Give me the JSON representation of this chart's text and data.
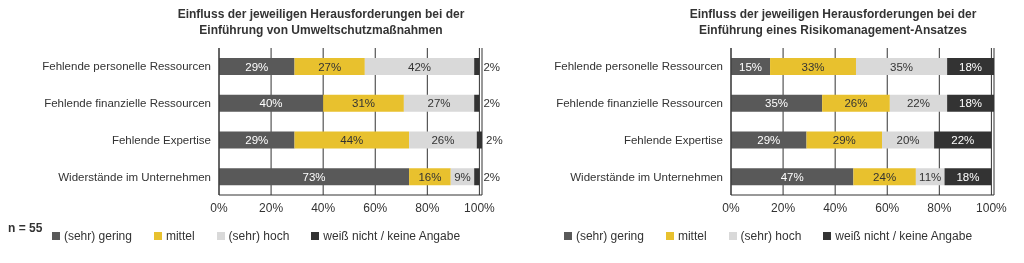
{
  "chart_data": [
    {
      "type": "bar",
      "orientation": "horizontal",
      "stacked": true,
      "title": "Einfluss der jeweiligen Herausforderungen bei der Einführung von Umweltschutzmaßnahmen",
      "categories": [
        "Fehlende personelle Ressourcen",
        "Fehlende finanzielle Ressourcen",
        "Fehlende Expertise",
        "Widerstände im Unternehmen"
      ],
      "series": [
        {
          "name": "(sehr) gering",
          "color": "#595959",
          "values": [
            29,
            40,
            29,
            73
          ],
          "value_labels": [
            "29%",
            "40%",
            "29%",
            "73%"
          ]
        },
        {
          "name": "mittel",
          "color": "#e8c12e",
          "values": [
            27,
            31,
            44,
            16
          ],
          "value_labels": [
            "27%",
            "31%",
            "44%",
            "16%"
          ]
        },
        {
          "name": "(sehr) hoch",
          "color": "#d9d9d9",
          "values": [
            42,
            27,
            26,
            9
          ],
          "value_labels": [
            "42%",
            "27%",
            "26%",
            "9%"
          ]
        },
        {
          "name": "weiß nicht / keine Angabe",
          "color": "#333333",
          "values": [
            2,
            2,
            2,
            2
          ],
          "value_labels": [
            "2%",
            "2%",
            "2%",
            "2%"
          ]
        }
      ],
      "xticks": [
        {
          "value": 0,
          "label": "0%"
        },
        {
          "value": 20,
          "label": "20%"
        },
        {
          "value": 40,
          "label": "40%"
        },
        {
          "value": 60,
          "label": "60%"
        },
        {
          "value": 80,
          "label": "80%"
        },
        {
          "value": 100,
          "label": "100%"
        }
      ],
      "grid": "x",
      "legend": "bottom",
      "annotations": [
        "n = 55"
      ],
      "xlim": [
        0,
        101
      ]
    },
    {
      "type": "bar",
      "orientation": "horizontal",
      "stacked": true,
      "title": "Einfluss der jeweiligen Herausforderungen bei der Einführung eines Risikomanagement-Ansatzes",
      "categories": [
        "Fehlende personelle Ressourcen",
        "Fehlende finanzielle Ressourcen",
        "Fehlende Expertise",
        "Widerstände im Unternehmen"
      ],
      "series": [
        {
          "name": "(sehr) gering",
          "color": "#595959",
          "values": [
            15,
            35,
            29,
            47
          ],
          "value_labels": [
            "15%",
            "35%",
            "29%",
            "47%"
          ]
        },
        {
          "name": "mittel",
          "color": "#e8c12e",
          "values": [
            33,
            26,
            29,
            24
          ],
          "value_labels": [
            "33%",
            "26%",
            "29%",
            "24%"
          ]
        },
        {
          "name": "(sehr) hoch",
          "color": "#d9d9d9",
          "values": [
            35,
            22,
            20,
            11
          ],
          "value_labels": [
            "35%",
            "22%",
            "20%",
            "11%"
          ]
        },
        {
          "name": "weiß nicht / keine Angabe",
          "color": "#333333",
          "values": [
            18,
            18,
            22,
            18
          ],
          "value_labels": [
            "18%",
            "18%",
            "22%",
            "18%"
          ]
        }
      ],
      "xlim": [
        0,
        101
      ],
      "xticks": [
        {
          "value": 0,
          "label": "0%"
        },
        {
          "value": 20,
          "label": "20%"
        },
        {
          "value": 40,
          "label": "40%"
        },
        {
          "value": 60,
          "label": "60%"
        },
        {
          "value": 80,
          "label": "80%"
        },
        {
          "value": 100,
          "label": "100%"
        }
      ],
      "grid": "x",
      "legend": "bottom"
    }
  ]
}
